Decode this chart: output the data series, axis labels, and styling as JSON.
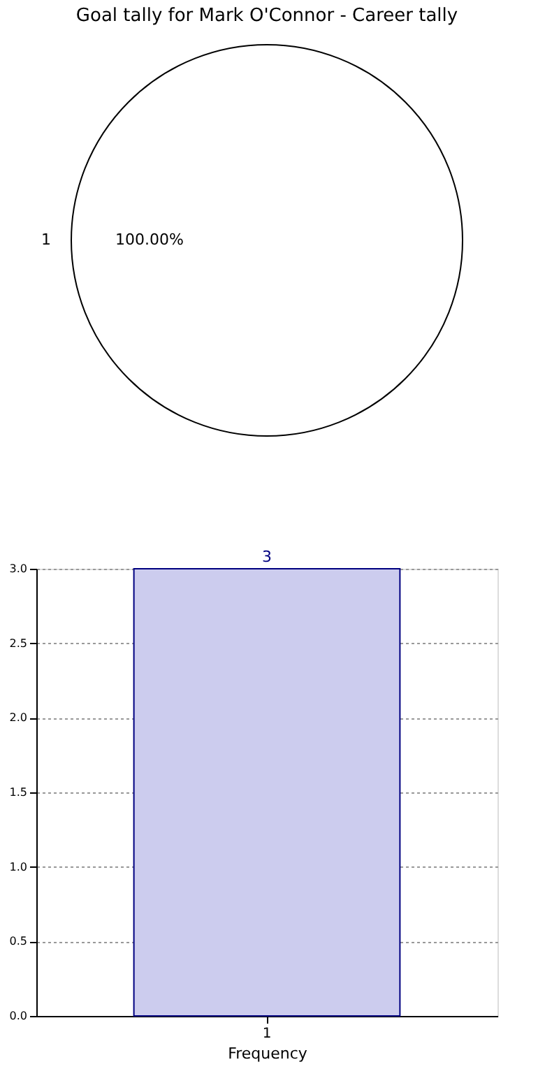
{
  "chart_data": [
    {
      "type": "pie",
      "title": "Goal tally for Mark O'Connor - Career tally",
      "categories": [
        "1"
      ],
      "values": [
        100
      ],
      "colors": [
        "#ffffff"
      ],
      "value_labels": [
        "100.00%"
      ]
    },
    {
      "type": "bar",
      "categories": [
        "1"
      ],
      "values": [
        3
      ],
      "color": "#ccccee",
      "ylim": [
        0,
        3
      ],
      "yticks": [
        {
          "value": 0,
          "label": "0.0"
        },
        {
          "value": 0.5,
          "label": "0.5"
        },
        {
          "value": 1,
          "label": "1.0"
        },
        {
          "value": 1.5,
          "label": "1.5"
        },
        {
          "value": 2,
          "label": "2.0"
        },
        {
          "value": 2.5,
          "label": "2.5"
        },
        {
          "value": 3,
          "label": "3.0"
        }
      ],
      "xlabel": "Frequency",
      "data_labels": true,
      "grid": true
    }
  ]
}
